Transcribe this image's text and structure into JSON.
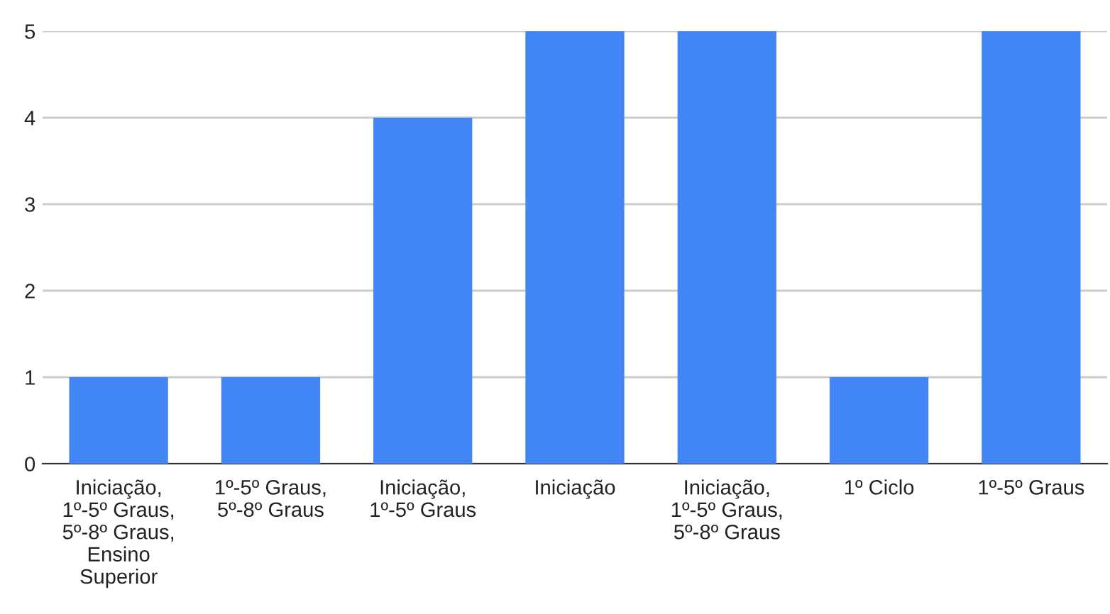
{
  "chart_data": {
    "type": "bar",
    "categories": [
      "Iniciação,\n1º-5º Graus,\n5º-8º Graus,\nEnsino\nSuperior",
      "1º-5º Graus,\n5º-8º Graus",
      "Iniciação,\n1º-5º Graus",
      "Iniciação",
      "Iniciação,\n1º-5º Graus,\n5º-8º Graus",
      "1º Ciclo",
      "1º-5º Graus"
    ],
    "values": [
      1,
      1,
      4,
      5,
      5,
      1,
      5
    ],
    "color": "#4285f4",
    "ylim": [
      0,
      5
    ],
    "yticks": [
      0,
      1,
      2,
      3,
      4,
      5
    ],
    "grid": "y",
    "legend": false
  }
}
